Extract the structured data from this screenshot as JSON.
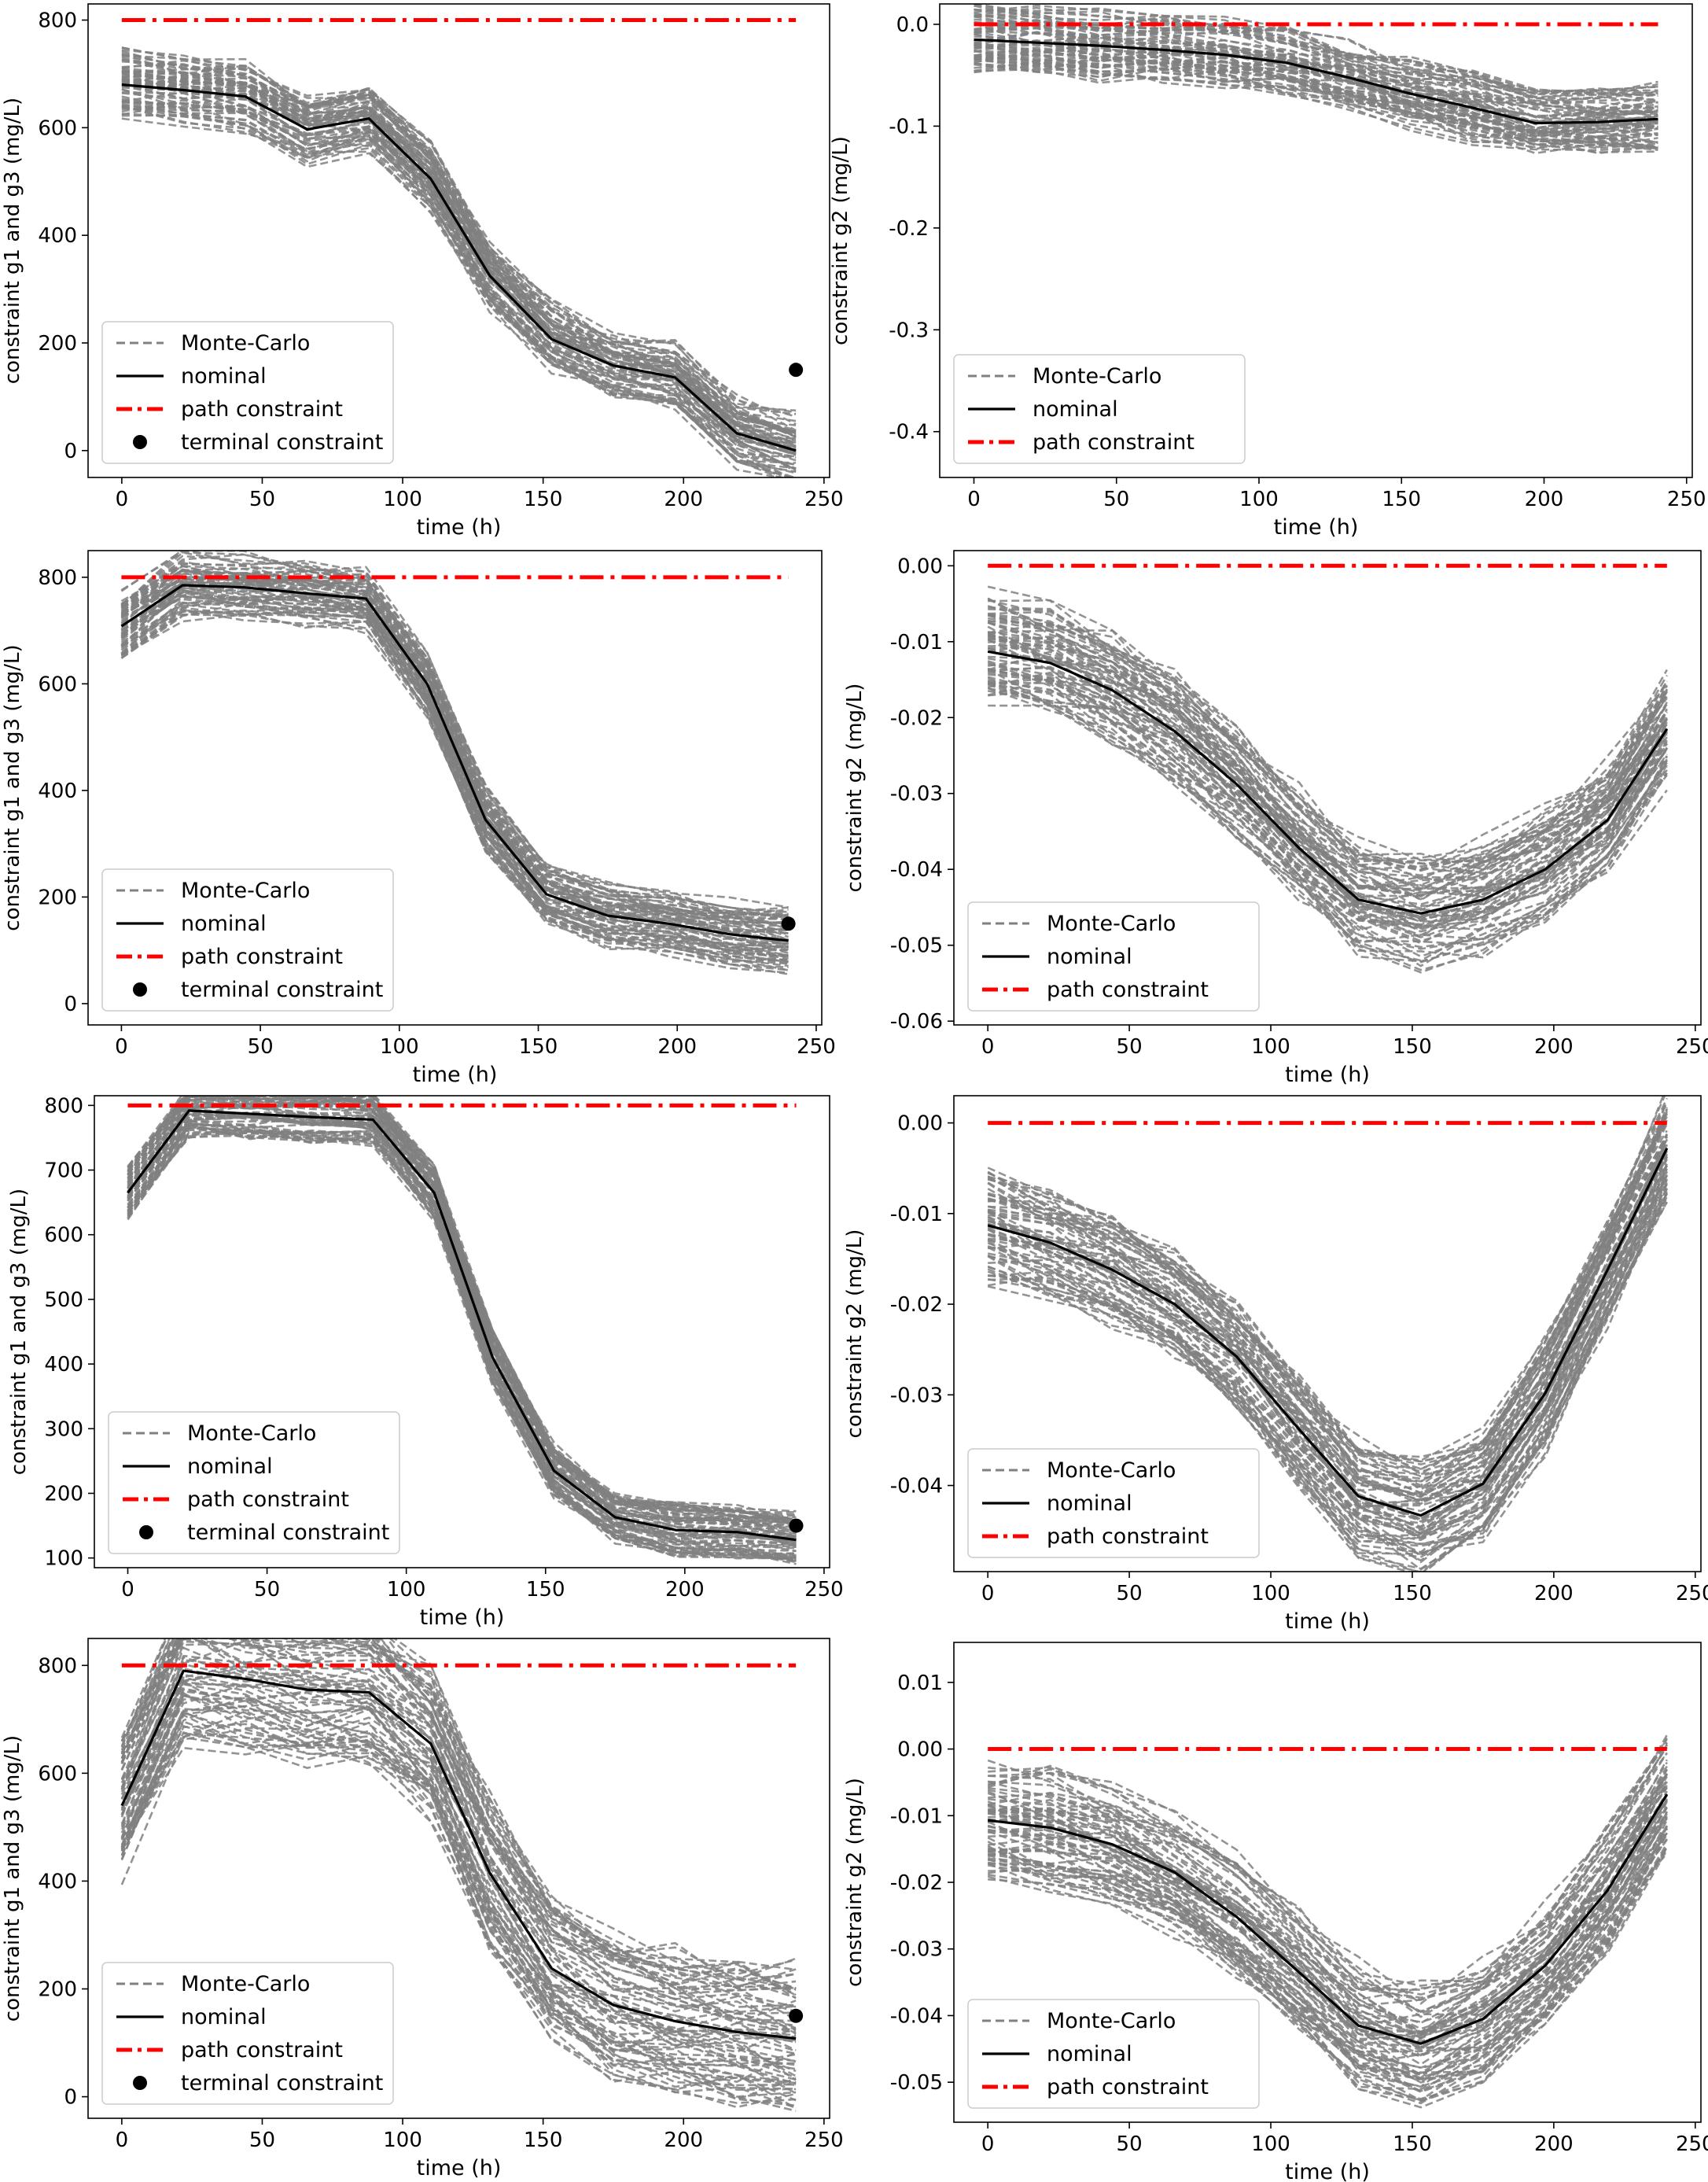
{
  "figure": {
    "legend_labels": {
      "mc": "Monte-Carlo",
      "nominal": "nominal",
      "path": "path constraint",
      "terminal": "terminal constraint"
    }
  },
  "colors": {
    "mc": "#808080",
    "nominal": "#000000",
    "path": "#ff0000",
    "terminal": "#000000"
  },
  "chart_data": [
    {
      "type": "line",
      "title": "",
      "xlabel": "time (h)",
      "ylabel": "constraint g1 and g3 (mg/L)",
      "xlim": [
        -12,
        252
      ],
      "ylim": [
        -50,
        830
      ],
      "xticks": [
        0,
        50,
        100,
        150,
        200,
        250
      ],
      "yticks": [
        0,
        200,
        400,
        600,
        800
      ],
      "legend_loc": "lower left",
      "show_terminal": true,
      "x": [
        0,
        22,
        44,
        66,
        88,
        110,
        131,
        153,
        175,
        197,
        219,
        240
      ],
      "nominal": [
        680,
        670,
        658,
        597,
        617,
        505,
        325,
        207,
        158,
        136,
        32,
        0
      ],
      "path_constraint": 800,
      "terminal": {
        "x": 240,
        "y": 150
      },
      "mc_spread": 60,
      "mc_seed": 11
    },
    {
      "type": "line",
      "title": "",
      "xlabel": "time (h)",
      "ylabel": "constraint g2 (mg/L)",
      "xlim": [
        -12,
        252
      ],
      "ylim": [
        -0.445,
        0.02
      ],
      "xticks": [
        0,
        50,
        100,
        150,
        200,
        250
      ],
      "yticks": [
        0.0,
        -0.1,
        -0.2,
        -0.3,
        -0.4
      ],
      "ytick_labels": [
        "0.0",
        "-0.1",
        "-0.2",
        "-0.3",
        "-0.4"
      ],
      "legend_loc": "lower left",
      "show_terminal": false,
      "x": [
        0,
        22,
        44,
        66,
        88,
        110,
        131,
        153,
        175,
        197,
        219,
        240
      ],
      "nominal": [
        -0.015,
        -0.018,
        -0.021,
        -0.025,
        -0.03,
        -0.038,
        -0.052,
        -0.068,
        -0.082,
        -0.097,
        -0.096,
        -0.093
      ],
      "path_constraint": 0.0,
      "mc_spread": 0.03,
      "mc_seed": 23
    },
    {
      "type": "line",
      "title": "",
      "xlabel": "time (h)",
      "ylabel": "constraint g1 and g3 (mg/L)",
      "xlim": [
        -12,
        252
      ],
      "ylim": [
        -40,
        850
      ],
      "xticks": [
        0,
        50,
        100,
        150,
        200,
        250
      ],
      "yticks": [
        0,
        200,
        400,
        600,
        800
      ],
      "legend_loc": "lower left",
      "show_terminal": true,
      "x": [
        0,
        22,
        44,
        66,
        88,
        110,
        131,
        153,
        175,
        197,
        219,
        240
      ],
      "nominal": [
        708,
        785,
        781,
        770,
        760,
        600,
        345,
        205,
        165,
        150,
        130,
        118
      ],
      "path_constraint": 800,
      "terminal": {
        "x": 240,
        "y": 150
      },
      "mc_spread": 55,
      "mc_seed": 37
    },
    {
      "type": "line",
      "title": "",
      "xlabel": "time (h)",
      "ylabel": "constraint g2 (mg/L)",
      "xlim": [
        -12,
        252
      ],
      "ylim": [
        -0.0605,
        0.002
      ],
      "xticks": [
        0,
        50,
        100,
        150,
        200,
        250
      ],
      "yticks": [
        0.0,
        -0.01,
        -0.02,
        -0.03,
        -0.04,
        -0.05,
        -0.06
      ],
      "ytick_labels": [
        "0.00",
        "-0.01",
        "-0.02",
        "-0.03",
        "-0.04",
        "-0.05",
        "-0.06"
      ],
      "legend_loc": "lower left",
      "show_terminal": false,
      "x": [
        0,
        22,
        44,
        66,
        88,
        110,
        131,
        153,
        175,
        197,
        219,
        240
      ],
      "nominal": [
        -0.0113,
        -0.0128,
        -0.0164,
        -0.0218,
        -0.0288,
        -0.0372,
        -0.044,
        -0.0458,
        -0.044,
        -0.04,
        -0.0335,
        -0.0215
      ],
      "path_constraint": 0.0,
      "mc_spread": 0.007,
      "mc_seed": 41
    },
    {
      "type": "line",
      "title": "",
      "xlabel": "time (h)",
      "ylabel": "constraint g1 and g3 (mg/L)",
      "xlim": [
        -12,
        252
      ],
      "ylim": [
        85,
        815
      ],
      "xticks": [
        0,
        50,
        100,
        150,
        200,
        250
      ],
      "yticks": [
        100,
        200,
        300,
        400,
        500,
        600,
        700,
        800
      ],
      "legend_loc": "lower left",
      "show_terminal": true,
      "x": [
        0,
        22,
        44,
        66,
        88,
        110,
        131,
        153,
        175,
        197,
        219,
        240
      ],
      "nominal": [
        665,
        792,
        787,
        782,
        778,
        665,
        410,
        235,
        163,
        143,
        140,
        128
      ],
      "path_constraint": 800,
      "terminal": {
        "x": 240,
        "y": 150
      },
      "mc_spread": 35,
      "mc_seed": 53
    },
    {
      "type": "line",
      "title": "",
      "xlabel": "time (h)",
      "ylabel": "constraint g2 (mg/L)",
      "xlim": [
        -12,
        252
      ],
      "ylim": [
        -0.0495,
        0.003
      ],
      "xticks": [
        0,
        50,
        100,
        150,
        200,
        250
      ],
      "yticks": [
        0.0,
        -0.01,
        -0.02,
        -0.03,
        -0.04
      ],
      "ytick_labels": [
        "0.00",
        "-0.01",
        "-0.02",
        "-0.03",
        "-0.04"
      ],
      "legend_loc": "lower left",
      "show_terminal": false,
      "x": [
        0,
        22,
        44,
        66,
        88,
        110,
        131,
        153,
        175,
        197,
        219,
        240
      ],
      "nominal": [
        -0.0113,
        -0.0132,
        -0.0162,
        -0.02,
        -0.0258,
        -0.0338,
        -0.0412,
        -0.0433,
        -0.0398,
        -0.0298,
        -0.0162,
        -0.0028
      ],
      "path_constraint": 0.0,
      "mc_spread": 0.0055,
      "mc_seed": 67
    },
    {
      "type": "line",
      "title": "",
      "xlabel": "time (h)",
      "ylabel": "constraint g1 and g3 (mg/L)",
      "xlim": [
        -12,
        252
      ],
      "ylim": [
        -40,
        850
      ],
      "xticks": [
        0,
        50,
        100,
        150,
        200,
        250
      ],
      "yticks": [
        0,
        200,
        400,
        600,
        800
      ],
      "legend_loc": "lower left",
      "show_terminal": true,
      "x": [
        0,
        22,
        44,
        66,
        88,
        110,
        131,
        153,
        175,
        197,
        219,
        240
      ],
      "nominal": [
        540,
        790,
        775,
        755,
        750,
        655,
        415,
        238,
        170,
        140,
        120,
        108
      ],
      "path_constraint": 800,
      "terminal": {
        "x": 240,
        "y": 150
      },
      "mc_spread": 120,
      "mc_seed": 79
    },
    {
      "type": "line",
      "title": "",
      "xlabel": "time (h)",
      "ylabel": "constraint g2 (mg/L)",
      "xlim": [
        -12,
        252
      ],
      "ylim": [
        -0.056,
        0.016
      ],
      "xticks": [
        0,
        50,
        100,
        150,
        200,
        250
      ],
      "yticks": [
        0.01,
        0.0,
        -0.01,
        -0.02,
        -0.03,
        -0.04,
        -0.05
      ],
      "ytick_labels": [
        "0.01",
        "0.00",
        "-0.01",
        "-0.02",
        "-0.03",
        "-0.04",
        "-0.05"
      ],
      "legend_loc": "lower left",
      "show_terminal": false,
      "x": [
        0,
        22,
        44,
        66,
        88,
        110,
        131,
        153,
        175,
        197,
        219,
        240
      ],
      "nominal": [
        -0.0107,
        -0.0118,
        -0.0143,
        -0.0185,
        -0.0252,
        -0.0335,
        -0.0415,
        -0.0442,
        -0.0405,
        -0.0325,
        -0.0212,
        -0.0068
      ],
      "path_constraint": 0.0,
      "mc_spread": 0.008,
      "mc_seed": 97
    }
  ]
}
